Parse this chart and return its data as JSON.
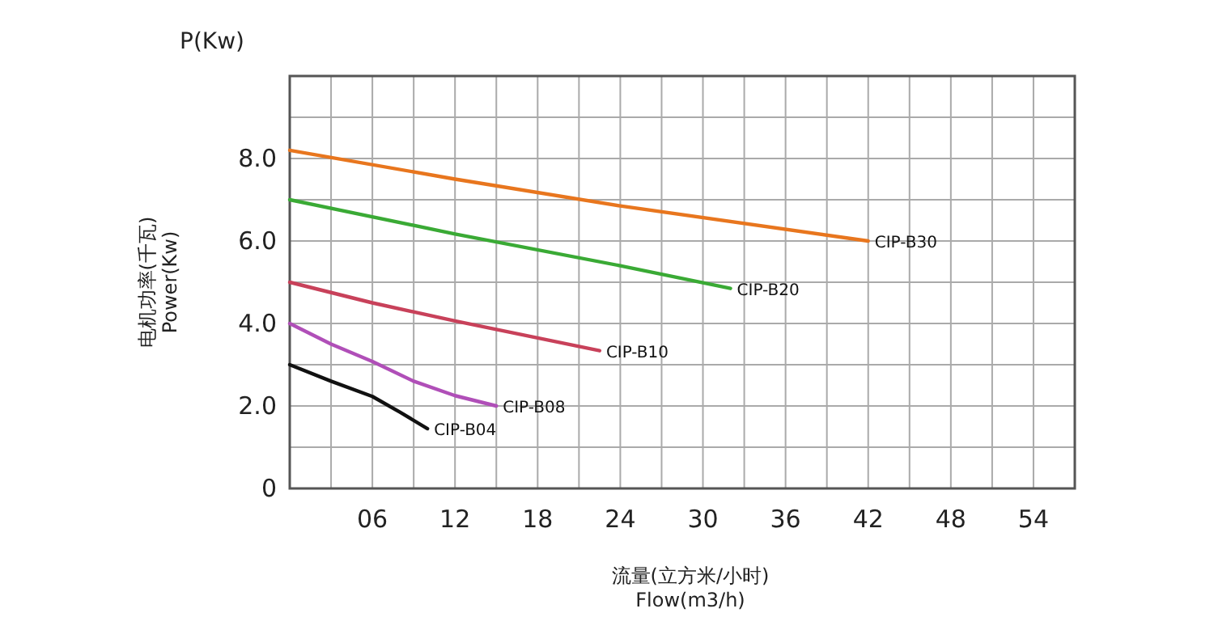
{
  "chart_data": {
    "type": "line",
    "ylabel": "电机功率(千瓦)\nPower(Kw)",
    "xlabel": "流量(立方米/小时)\nFlow(m3/h)",
    "annotations": [
      "P(Kw)"
    ],
    "xlim": [
      0,
      57
    ],
    "ylim": [
      0,
      10
    ],
    "xticks": [
      {
        "value": 0,
        "label": null
      },
      {
        "value": 3,
        "label": null
      },
      {
        "value": 6,
        "label": "06"
      },
      {
        "value": 9,
        "label": null
      },
      12,
      {
        "value": 15,
        "label": null
      },
      18,
      {
        "value": 21,
        "label": null
      },
      24,
      {
        "value": 27,
        "label": null
      },
      30,
      {
        "value": 33,
        "label": null
      },
      36,
      {
        "value": 39,
        "label": null
      },
      42,
      {
        "value": 45,
        "label": null
      },
      48,
      {
        "value": 51,
        "label": null
      },
      54,
      {
        "value": 57,
        "label": null
      }
    ],
    "yticks": [
      0,
      {
        "value": 1,
        "label": null
      },
      {
        "value": 2,
        "label": "2.0"
      },
      {
        "value": 3,
        "label": null
      },
      {
        "value": 4,
        "label": "4.0"
      },
      {
        "value": 5,
        "label": null
      },
      {
        "value": 6,
        "label": "6.0"
      },
      {
        "value": 7,
        "label": null
      },
      {
        "value": 8,
        "label": "8.0"
      },
      {
        "value": 9,
        "label": null
      },
      {
        "value": 10,
        "label": null
      }
    ],
    "grid": true,
    "line_style": "solid",
    "series": [
      {
        "name": "CIP-B30",
        "color": "#e8761e",
        "x": [
          0,
          12,
          24,
          42
        ],
        "values": [
          8.2,
          7.5,
          6.85,
          6.0
        ]
      },
      {
        "name": "CIP-B20",
        "color": "#3aaa35",
        "x": [
          0,
          12,
          24,
          32
        ],
        "values": [
          7.0,
          6.17,
          5.4,
          4.85
        ]
      },
      {
        "name": "CIP-B10",
        "color": "#c8415a",
        "x": [
          0,
          6,
          12,
          18,
          22.5
        ],
        "values": [
          5.0,
          4.5,
          4.06,
          3.65,
          3.34
        ]
      },
      {
        "name": "CIP-B08",
        "color": "#b04fb8",
        "x": [
          0,
          3,
          6,
          9,
          12,
          15
        ],
        "values": [
          4.0,
          3.5,
          3.08,
          2.6,
          2.25,
          2.0
        ]
      },
      {
        "name": "CIP-B04",
        "color": "#111111",
        "x": [
          0,
          3,
          6,
          8,
          10
        ],
        "values": [
          3.0,
          2.6,
          2.23,
          1.85,
          1.45
        ]
      }
    ]
  }
}
